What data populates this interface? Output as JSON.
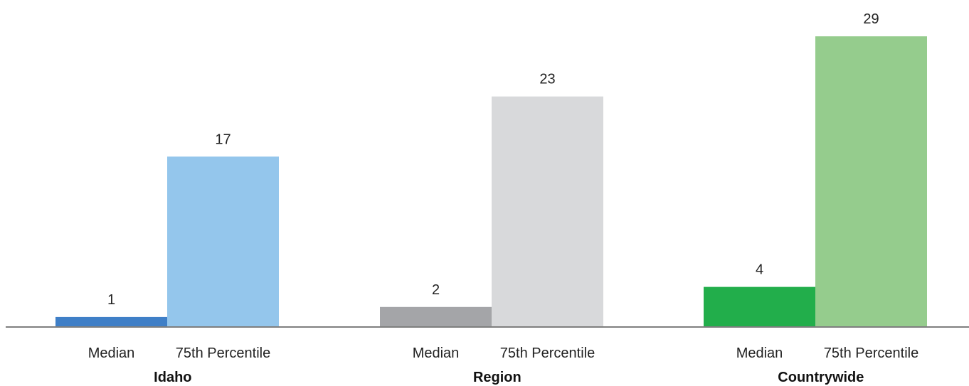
{
  "chart_data": {
    "type": "bar",
    "groups": [
      {
        "name": "Idaho",
        "bars": [
          {
            "category": "Median",
            "value": 1,
            "color": "#3F7FC7"
          },
          {
            "category": "75th Percentile",
            "value": 17,
            "color": "#94C6EC"
          }
        ]
      },
      {
        "name": "Region",
        "bars": [
          {
            "category": "Median",
            "value": 2,
            "color": "#A4A5A8"
          },
          {
            "category": "75th Percentile",
            "value": 23,
            "color": "#D8D9DB"
          }
        ]
      },
      {
        "name": "Countrywide",
        "bars": [
          {
            "category": "Median",
            "value": 4,
            "color": "#22AE4B"
          },
          {
            "category": "75th Percentile",
            "value": 29,
            "color": "#95CC8D"
          }
        ]
      }
    ],
    "ylim": [
      0,
      29
    ],
    "grid": false,
    "legend": "none",
    "axis_color": "#7F7F7F"
  }
}
